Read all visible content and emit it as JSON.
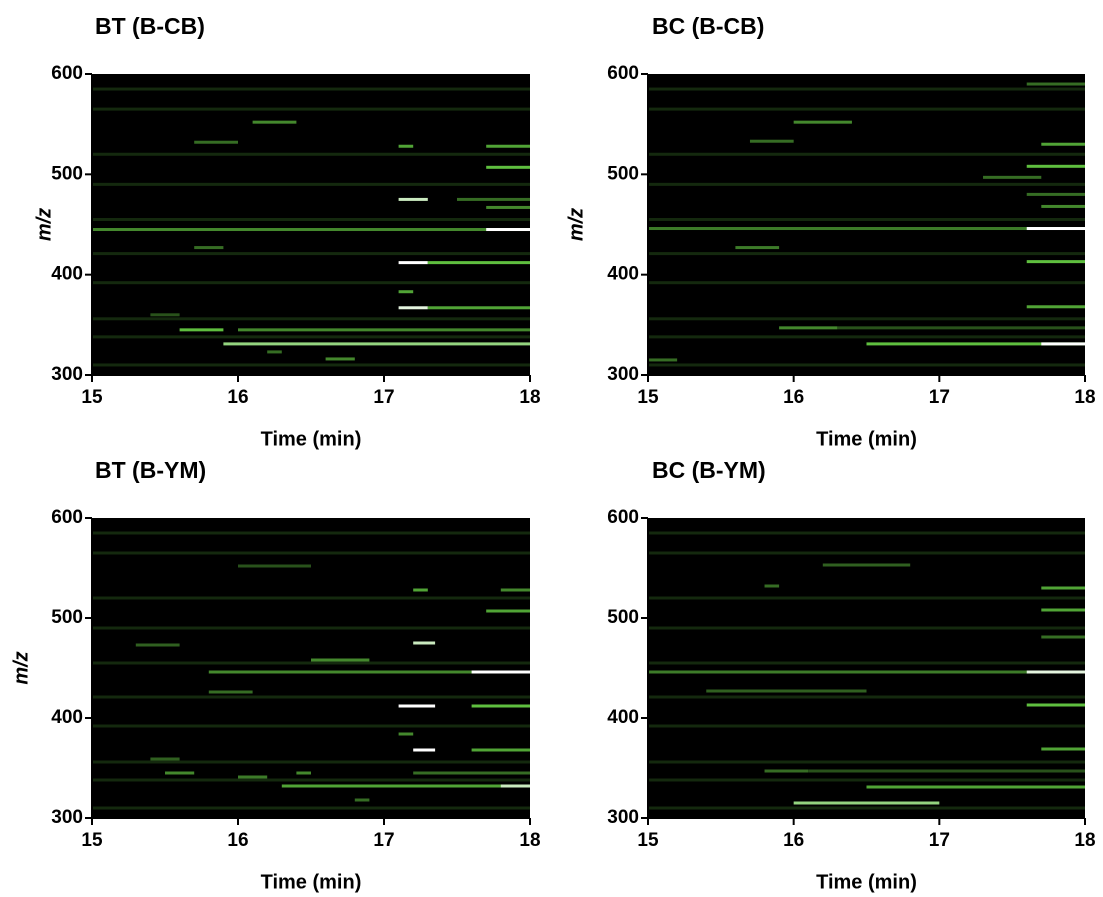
{
  "chart_data": [
    {
      "type": "heatmap",
      "title": "BT (B-CB)",
      "xlabel": "Time (min)",
      "ylabel": "m/z",
      "xlim": [
        15,
        18
      ],
      "ylim": [
        300,
        600
      ],
      "xticks": [
        15,
        16,
        17,
        18
      ],
      "yticks": [
        300,
        400,
        500,
        600
      ],
      "peaks": {
        "start": [
          15,
          15,
          15,
          15,
          15,
          15,
          15,
          15,
          15,
          15,
          15.9,
          15.6,
          16.0,
          17.1,
          17.3,
          17.1,
          17.1,
          17.3,
          15,
          17.7,
          15.7,
          17.1,
          17.5,
          17.7,
          17.1,
          17.7,
          16.1,
          15.7,
          16.6,
          16.2,
          17.7,
          15.4
        ],
        "end": [
          18,
          18,
          18,
          18,
          18,
          18,
          18,
          18,
          18,
          18,
          18,
          15.9,
          18,
          17.3,
          18,
          17.2,
          17.3,
          18,
          18,
          18,
          15.9,
          17.3,
          18,
          18,
          17.2,
          18,
          16.4,
          16.0,
          16.8,
          16.3,
          18,
          15.6
        ],
        "mz": [
          310,
          338,
          356,
          392,
          421,
          455,
          490,
          520,
          565,
          585,
          331,
          345,
          345,
          367,
          367,
          383,
          412,
          412,
          445,
          445,
          427,
          475,
          475,
          507,
          528,
          528,
          552,
          532,
          316,
          323,
          467,
          360
        ],
        "intensity": [
          0.15,
          0.15,
          0.15,
          0.15,
          0.15,
          0.15,
          0.15,
          0.15,
          0.15,
          0.15,
          0.8,
          0.7,
          0.5,
          0.95,
          0.6,
          0.6,
          1.0,
          0.7,
          0.5,
          1.0,
          0.4,
          0.9,
          0.4,
          0.7,
          0.6,
          0.6,
          0.5,
          0.4,
          0.5,
          0.4,
          0.5,
          0.3
        ]
      }
    },
    {
      "type": "heatmap",
      "title": "BC (B-CB)",
      "xlabel": "Time (min)",
      "ylabel": "m/z",
      "xlim": [
        15,
        18
      ],
      "ylim": [
        300,
        600
      ],
      "xticks": [
        15,
        16,
        17,
        18
      ],
      "yticks": [
        300,
        400,
        500,
        600
      ],
      "peaks": {
        "start": [
          15,
          15,
          15,
          15,
          15,
          15,
          15,
          15,
          15,
          15,
          16.5,
          17.7,
          15.9,
          16.3,
          17.6,
          17.6,
          15.6,
          15,
          17.6,
          17.7,
          17.6,
          17.3,
          17.6,
          17.7,
          16.0,
          15.7,
          15,
          17.6
        ],
        "end": [
          18,
          18,
          18,
          18,
          18,
          18,
          18,
          18,
          18,
          18,
          18,
          18,
          16.3,
          18,
          18,
          18,
          15.9,
          18,
          18,
          18,
          18,
          17.7,
          18,
          18,
          16.4,
          16.0,
          15.2,
          18
        ],
        "mz": [
          310,
          338,
          356,
          392,
          421,
          455,
          490,
          520,
          565,
          585,
          331,
          331,
          347,
          347,
          368,
          413,
          427,
          446,
          446,
          468,
          480,
          497,
          508,
          530,
          552,
          533,
          315,
          590
        ],
        "intensity": [
          0.15,
          0.15,
          0.15,
          0.15,
          0.15,
          0.15,
          0.15,
          0.15,
          0.15,
          0.15,
          0.7,
          1.0,
          0.5,
          0.3,
          0.6,
          0.7,
          0.45,
          0.45,
          1.0,
          0.5,
          0.4,
          0.4,
          0.7,
          0.6,
          0.5,
          0.4,
          0.4,
          0.4
        ]
      }
    },
    {
      "type": "heatmap",
      "title": "BT (B-YM)",
      "xlabel": "Time (min)",
      "ylabel": "m/z",
      "xlim": [
        15,
        18
      ],
      "ylim": [
        300,
        600
      ],
      "xticks": [
        15,
        16,
        17,
        18
      ],
      "yticks": [
        300,
        400,
        500,
        600
      ],
      "peaks": {
        "start": [
          15,
          15,
          15,
          15,
          15,
          15,
          15,
          15,
          15,
          15,
          16.3,
          17.8,
          15.5,
          16.4,
          17.2,
          16.0,
          15.4,
          17.2,
          17.6,
          17.1,
          17.1,
          17.6,
          15.8,
          17.6,
          16.5,
          17.2,
          17.7,
          17.2,
          17.8,
          15.3,
          16.8,
          15.8,
          16.0
        ],
        "end": [
          18,
          18,
          18,
          18,
          18,
          18,
          18,
          18,
          18,
          18,
          18,
          18,
          15.7,
          16.5,
          18,
          16.2,
          15.6,
          17.35,
          18,
          17.2,
          17.35,
          18,
          18,
          18,
          16.9,
          17.35,
          18,
          17.3,
          18,
          15.6,
          16.9,
          16.1,
          16.5
        ],
        "mz": [
          310,
          338,
          356,
          392,
          421,
          455,
          490,
          520,
          565,
          585,
          332,
          332,
          345,
          345,
          345,
          341,
          359,
          368,
          368,
          384,
          412,
          412,
          446,
          446,
          458,
          475,
          507,
          528,
          528,
          473,
          318,
          426,
          552
        ],
        "intensity": [
          0.15,
          0.15,
          0.15,
          0.15,
          0.15,
          0.15,
          0.15,
          0.15,
          0.15,
          0.15,
          0.6,
          0.9,
          0.5,
          0.5,
          0.4,
          0.45,
          0.35,
          1.0,
          0.6,
          0.5,
          1.0,
          0.7,
          0.5,
          1.0,
          0.5,
          0.9,
          0.6,
          0.6,
          0.5,
          0.35,
          0.4,
          0.4,
          0.3
        ]
      }
    },
    {
      "type": "heatmap",
      "title": "BC (B-YM)",
      "xlabel": "Time (min)",
      "xlim": [
        15,
        18
      ],
      "ylim": [
        300,
        600
      ],
      "xticks": [
        15,
        16,
        17,
        18
      ],
      "yticks": [
        300,
        400,
        500,
        600
      ],
      "peaks": {
        "start": [
          15,
          15,
          15,
          15,
          15,
          15,
          15,
          15,
          15,
          15,
          16.0,
          16.5,
          15.8,
          16.1,
          17.7,
          17.6,
          15.4,
          15,
          17.6,
          17.7,
          17.7,
          16.2,
          15.8,
          17.7
        ],
        "end": [
          18,
          18,
          18,
          18,
          18,
          18,
          18,
          18,
          18,
          18,
          17.0,
          18,
          16.1,
          18,
          18,
          18,
          16.5,
          18,
          18,
          18,
          18,
          16.8,
          15.9,
          18
        ],
        "mz": [
          310,
          338,
          356,
          392,
          421,
          455,
          490,
          520,
          565,
          585,
          315,
          331,
          347,
          347,
          369,
          413,
          427,
          446,
          446,
          508,
          530,
          553,
          532,
          481
        ],
        "intensity": [
          0.15,
          0.15,
          0.15,
          0.15,
          0.15,
          0.15,
          0.15,
          0.15,
          0.15,
          0.15,
          0.8,
          0.6,
          0.4,
          0.3,
          0.6,
          0.7,
          0.35,
          0.45,
          0.95,
          0.6,
          0.6,
          0.35,
          0.4,
          0.4
        ]
      }
    }
  ]
}
